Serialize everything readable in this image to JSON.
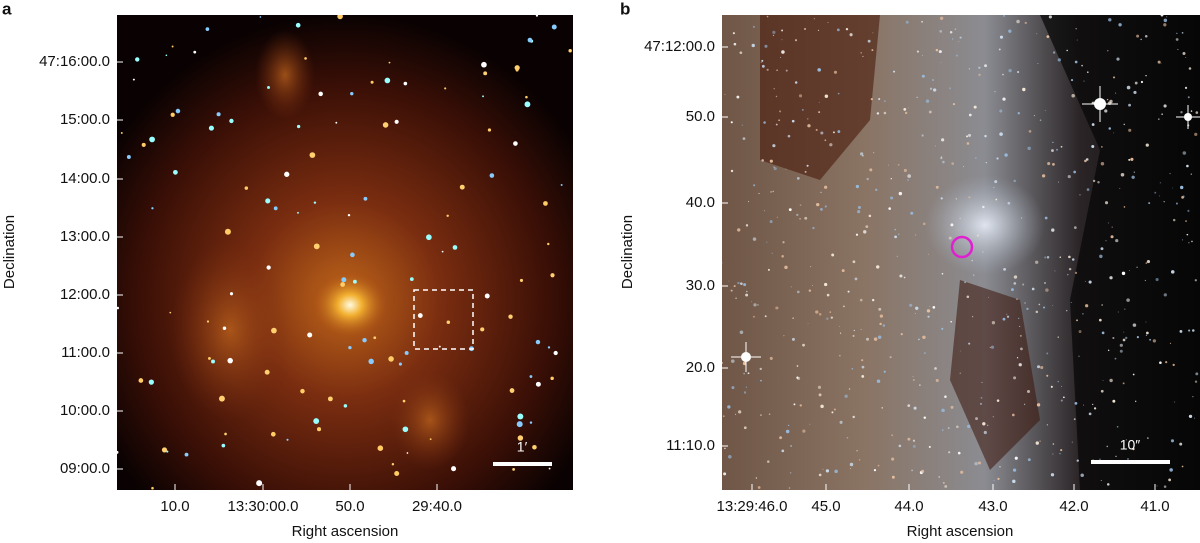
{
  "panels": [
    {
      "label": "a",
      "y_axis_label": "Declination",
      "x_axis_label": "Right ascension",
      "yticks": [
        "47:16:00.0",
        "15:00.0",
        "14:00.0",
        "13:00.0",
        "12:00.0",
        "11:00.0",
        "10:00.0",
        "09:00.0"
      ],
      "xticks": [
        "10.0",
        "13:30:00.0",
        "50.0",
        "29:40.0"
      ],
      "scale_bar": "1′"
    },
    {
      "label": "b",
      "y_axis_label": "Declination",
      "x_axis_label": "Right ascension",
      "yticks": [
        "47:12:00.0",
        "50.0",
        "40.0",
        "30.0",
        "20.0",
        "11:10.0"
      ],
      "xticks": [
        "13:29:46.0",
        "45.0",
        "44.0",
        "43.0",
        "42.0",
        "41.0"
      ],
      "scale_bar": "10″"
    }
  ]
}
